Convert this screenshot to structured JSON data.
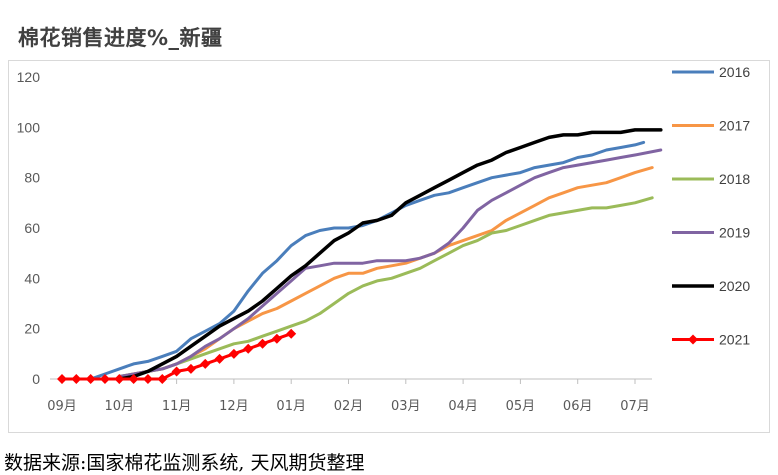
{
  "chart_data": {
    "type": "line",
    "title": "棉花销售进度%_新疆",
    "source": "数据来源:国家棉花监测系统, 天风期货整理",
    "ylim": [
      0,
      120
    ],
    "yticks": [
      0,
      20,
      40,
      60,
      80,
      100,
      120
    ],
    "x_categories": [
      "09月",
      "10月",
      "11月",
      "12月",
      "01月",
      "02月",
      "03月",
      "04月",
      "05月",
      "06月",
      "07月"
    ],
    "legend_position": "right",
    "grid": false,
    "series": [
      {
        "name": "2016",
        "color": "#4a7ebb",
        "marker": "none",
        "x": [
          0.0,
          0.5,
          0.75,
          1.0,
          1.25,
          1.5,
          1.75,
          2.0,
          2.25,
          2.5,
          2.75,
          3.0,
          3.25,
          3.5,
          3.75,
          4.0,
          4.25,
          4.5,
          4.75,
          5.0,
          5.25,
          5.5,
          5.75,
          6.0,
          6.25,
          6.5,
          6.75,
          7.0,
          7.25,
          7.5,
          7.75,
          8.0,
          8.25,
          8.5,
          8.75,
          9.0,
          9.25,
          9.5,
          9.75,
          10.0,
          10.15
        ],
        "y": [
          0,
          0,
          2,
          4,
          6,
          7,
          9,
          11,
          16,
          19,
          22,
          27,
          35,
          42,
          47,
          53,
          57,
          59,
          60,
          60,
          61,
          63,
          66,
          69,
          71,
          73,
          74,
          76,
          78,
          80,
          81,
          82,
          84,
          85,
          86,
          88,
          89,
          91,
          92,
          93,
          94
        ]
      },
      {
        "name": "2017",
        "color": "#f79646",
        "marker": "none",
        "x": [
          1.0,
          1.25,
          1.5,
          1.75,
          2.0,
          2.25,
          2.5,
          2.75,
          3.0,
          3.25,
          3.5,
          3.75,
          4.0,
          4.25,
          4.5,
          4.75,
          5.0,
          5.25,
          5.5,
          5.75,
          6.0,
          6.25,
          6.5,
          6.75,
          7.0,
          7.25,
          7.5,
          7.75,
          8.0,
          8.25,
          8.5,
          8.75,
          9.0,
          9.25,
          9.5,
          9.75,
          10.0,
          10.3
        ],
        "y": [
          1,
          2,
          3,
          4,
          6,
          9,
          12,
          16,
          20,
          23,
          26,
          28,
          31,
          34,
          37,
          40,
          42,
          42,
          44,
          45,
          46,
          48,
          50,
          53,
          55,
          57,
          59,
          63,
          66,
          69,
          72,
          74,
          76,
          77,
          78,
          80,
          82,
          84
        ]
      },
      {
        "name": "2018",
        "color": "#9bbb59",
        "marker": "none",
        "x": [
          1.0,
          1.25,
          1.5,
          1.75,
          2.0,
          2.25,
          2.5,
          2.75,
          3.0,
          3.25,
          3.5,
          3.75,
          4.0,
          4.25,
          4.5,
          4.75,
          5.0,
          5.25,
          5.5,
          5.75,
          6.0,
          6.25,
          6.5,
          6.75,
          7.0,
          7.25,
          7.5,
          7.75,
          8.0,
          8.25,
          8.5,
          8.75,
          9.0,
          9.25,
          9.5,
          9.75,
          10.0,
          10.3
        ],
        "y": [
          1,
          2,
          3,
          4,
          6,
          8,
          10,
          12,
          14,
          15,
          17,
          19,
          21,
          23,
          26,
          30,
          34,
          37,
          39,
          40,
          42,
          44,
          47,
          50,
          53,
          55,
          58,
          59,
          61,
          63,
          65,
          66,
          67,
          68,
          68,
          69,
          70,
          72
        ]
      },
      {
        "name": "2019",
        "color": "#8064a2",
        "marker": "none",
        "x": [
          1.0,
          1.25,
          1.5,
          1.75,
          2.0,
          2.25,
          2.5,
          2.75,
          3.0,
          3.25,
          3.5,
          3.75,
          4.0,
          4.25,
          4.5,
          4.75,
          5.0,
          5.25,
          5.5,
          5.75,
          6.0,
          6.25,
          6.5,
          6.75,
          7.0,
          7.25,
          7.5,
          7.75,
          8.0,
          8.25,
          8.5,
          8.75,
          9.0,
          9.25,
          9.5,
          9.75,
          10.0,
          10.45
        ],
        "y": [
          1,
          2,
          3,
          4,
          6,
          9,
          13,
          16,
          20,
          24,
          29,
          34,
          39,
          44,
          45,
          46,
          46,
          46,
          47,
          47,
          47,
          48,
          50,
          54,
          60,
          67,
          71,
          74,
          77,
          80,
          82,
          84,
          85,
          86,
          87,
          88,
          89,
          91
        ]
      },
      {
        "name": "2020",
        "color": "#000000",
        "marker": "none",
        "x": [
          1.0,
          1.25,
          1.5,
          1.75,
          2.0,
          2.25,
          2.5,
          2.75,
          3.0,
          3.25,
          3.5,
          3.75,
          4.0,
          4.25,
          4.5,
          4.75,
          5.0,
          5.25,
          5.5,
          5.75,
          6.0,
          6.25,
          6.5,
          6.75,
          7.0,
          7.25,
          7.5,
          7.75,
          8.0,
          8.25,
          8.5,
          8.75,
          9.0,
          9.25,
          9.5,
          9.75,
          10.0,
          10.45
        ],
        "y": [
          0,
          1,
          3,
          6,
          9,
          13,
          17,
          21,
          24,
          27,
          31,
          36,
          41,
          45,
          50,
          55,
          58,
          62,
          63,
          65,
          70,
          73,
          76,
          79,
          82,
          85,
          87,
          90,
          92,
          94,
          96,
          97,
          97,
          98,
          98,
          98,
          99,
          99
        ]
      },
      {
        "name": "2021",
        "color": "#ff0000",
        "marker": "diamond",
        "x": [
          0.0,
          0.25,
          0.5,
          0.75,
          1.0,
          1.25,
          1.5,
          1.75,
          2.0,
          2.25,
          2.5,
          2.75,
          3.0,
          3.25,
          3.5,
          3.75,
          4.0
        ],
        "y": [
          0,
          0,
          0,
          0,
          0,
          0,
          0,
          0,
          3,
          4,
          6,
          8,
          10,
          12,
          14,
          16,
          18
        ]
      }
    ]
  }
}
